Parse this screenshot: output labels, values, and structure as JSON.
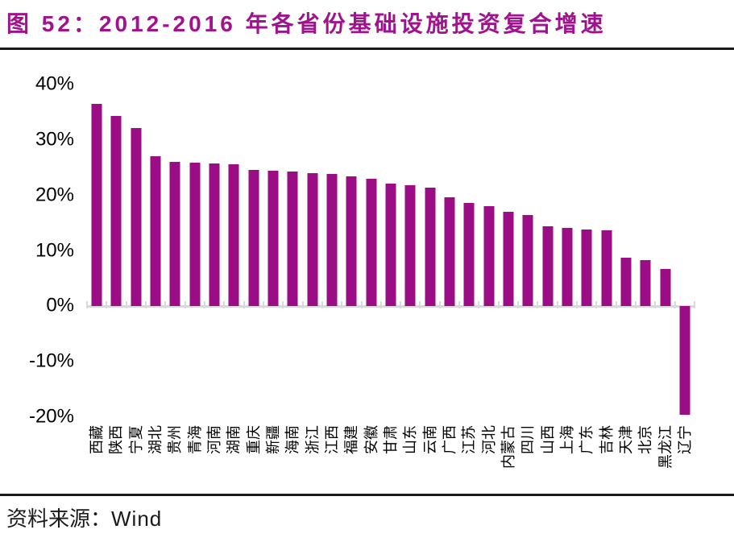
{
  "title": "图 52：2012-2016 年各省份基础设施投资复合增速",
  "source": {
    "prefix": "资料来源：",
    "name": "Wind"
  },
  "colors": {
    "bar": "#9A0D84",
    "title": "#A1128E",
    "divider": "#1A1A1A",
    "axis_line": "#D9D9D9",
    "tick": "#D9D9D9",
    "label_text": "#000000"
  },
  "chart_data": {
    "type": "bar",
    "title": "2012-2016 年各省份基础设施投资复合增速",
    "xlabel": "",
    "ylabel": "",
    "unit": "%",
    "ylim": [
      -20,
      40
    ],
    "y_ticks": [
      "40%",
      "30%",
      "20%",
      "10%",
      "0%",
      "-10%",
      "-20%"
    ],
    "y_tick_values": [
      40,
      30,
      20,
      10,
      0,
      -10,
      -20
    ],
    "grid": false,
    "legend": false,
    "sorted": "descending",
    "categories": [
      "西藏",
      "陕西",
      "宁夏",
      "湖北",
      "贵州",
      "青海",
      "河南",
      "湖南",
      "重庆",
      "新疆",
      "海南",
      "浙江",
      "江西",
      "福建",
      "安徽",
      "甘肃",
      "山东",
      "云南",
      "广西",
      "江苏",
      "河北",
      "内蒙古",
      "四川",
      "山西",
      "上海",
      "广东",
      "吉林",
      "天津",
      "北京",
      "黑龙江",
      "辽宁"
    ],
    "values": [
      36.5,
      34.3,
      32.1,
      27.0,
      26.0,
      25.9,
      25.7,
      25.6,
      24.6,
      24.4,
      24.3,
      24.0,
      23.9,
      23.4,
      23.0,
      22.1,
      21.9,
      21.4,
      19.6,
      18.6,
      18.0,
      17.1,
      16.4,
      14.5,
      14.2,
      13.9,
      13.7,
      8.7,
      8.4,
      6.8,
      -19.6
    ]
  }
}
